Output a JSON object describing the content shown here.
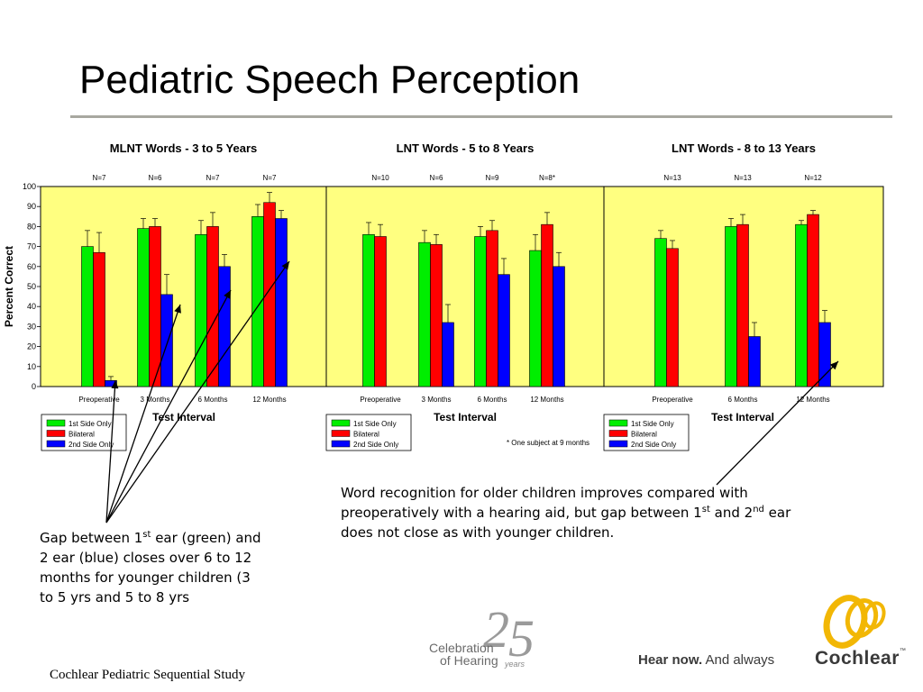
{
  "slide": {
    "title": "Pediatric Speech Perception",
    "footer": "Cochlear Pediatric Sequential Study",
    "tagline_strong": "Hear now.",
    "tagline_rest": " And always",
    "brand": "Cochlear",
    "trademark": "™",
    "anniversary_line1": "Celebration",
    "anniversary_line2a": "of ",
    "anniversary_line2b": "Hearing",
    "anniversary_years": "years",
    "anniversary_number_2": "2",
    "anniversary_number_5": "5"
  },
  "callouts": {
    "left": {
      "part1": "Gap between 1",
      "sup1": "st",
      "part2": " ear (green) and 2 ear (blue) closes over 6 to 12 months for younger children (3 to 5 yrs and 5 to 8 yrs"
    },
    "right": {
      "part1": "Word recognition for older children improves compared with preoperatively with a hearing aid, but gap between 1",
      "sup1": "st",
      "part2": " and 2",
      "sup2": "nd",
      "part3": " ear does not close as with  younger children."
    }
  },
  "colors": {
    "plot_bg": "#ffff80",
    "first_side": "#00ee00",
    "bilateral": "#ff0000",
    "second_side": "#0000ff",
    "rule": "#a8a8a0"
  },
  "chart_data": [
    {
      "type": "bar",
      "title": "MLNT Words - 3 to 5 Years",
      "xlabel": "Test Interval",
      "ylabel": "Percent Correct",
      "ylim": [
        0,
        100
      ],
      "yticks": [
        "0",
        "10",
        "20",
        "30",
        "40",
        "50",
        "60",
        "70",
        "80",
        "90",
        "100"
      ],
      "categories": [
        "Preoperative",
        "3 Months",
        "6 Months",
        "12 Months"
      ],
      "n_labels": [
        "N=7",
        "N=6",
        "N=7",
        "N=7"
      ],
      "legend": [
        "1st Side Only",
        "Bilateral",
        "2nd Side Only"
      ],
      "legend_position": "below-left",
      "series": [
        {
          "name": "1st Side Only",
          "values": [
            70,
            79,
            76,
            85
          ],
          "errors": [
            8,
            5,
            7,
            6
          ]
        },
        {
          "name": "Bilateral",
          "values": [
            67,
            80,
            80,
            92
          ],
          "errors": [
            10,
            4,
            7,
            5
          ]
        },
        {
          "name": "2nd Side Only",
          "values": [
            3,
            46,
            60,
            84
          ],
          "errors": [
            2,
            10,
            6,
            4
          ]
        }
      ],
      "note": ""
    },
    {
      "type": "bar",
      "title": "LNT Words - 5 to 8 Years",
      "xlabel": "Test Interval",
      "ylabel": "",
      "ylim": [
        0,
        100
      ],
      "categories": [
        "Preoperative",
        "3 Months",
        "6 Months",
        "12 Months"
      ],
      "n_labels": [
        "N=10",
        "N=6",
        "N=9",
        "N=8*"
      ],
      "legend": [
        "1st Side Only",
        "Bilateral",
        "2nd Side Only"
      ],
      "legend_position": "below-left",
      "series": [
        {
          "name": "1st Side Only",
          "values": [
            76,
            72,
            75,
            68
          ],
          "errors": [
            6,
            6,
            5,
            8
          ]
        },
        {
          "name": "Bilateral",
          "values": [
            75,
            71,
            78,
            81
          ],
          "errors": [
            6,
            5,
            5,
            6
          ]
        },
        {
          "name": "2nd Side Only",
          "values": [
            null,
            32,
            56,
            60
          ],
          "errors": [
            null,
            9,
            8,
            7
          ]
        }
      ],
      "note": "* One subject at 9 months"
    },
    {
      "type": "bar",
      "title": "LNT Words - 8 to 13 Years",
      "xlabel": "Test Interval",
      "ylabel": "",
      "ylim": [
        0,
        100
      ],
      "categories": [
        "Preoperative",
        "6 Months",
        "12 Months"
      ],
      "n_labels": [
        "N=13",
        "N=13",
        "N=12"
      ],
      "legend": [
        "1st Side Only",
        "Bilateral",
        "2nd Side Only"
      ],
      "legend_position": "below-left",
      "series": [
        {
          "name": "1st Side Only",
          "values": [
            74,
            80,
            81
          ],
          "errors": [
            4,
            4,
            2
          ]
        },
        {
          "name": "Bilateral",
          "values": [
            69,
            81,
            86
          ],
          "errors": [
            4,
            5,
            2
          ]
        },
        {
          "name": "2nd Side Only",
          "values": [
            null,
            25,
            32
          ],
          "errors": [
            null,
            7,
            6
          ]
        }
      ],
      "note": ""
    }
  ]
}
